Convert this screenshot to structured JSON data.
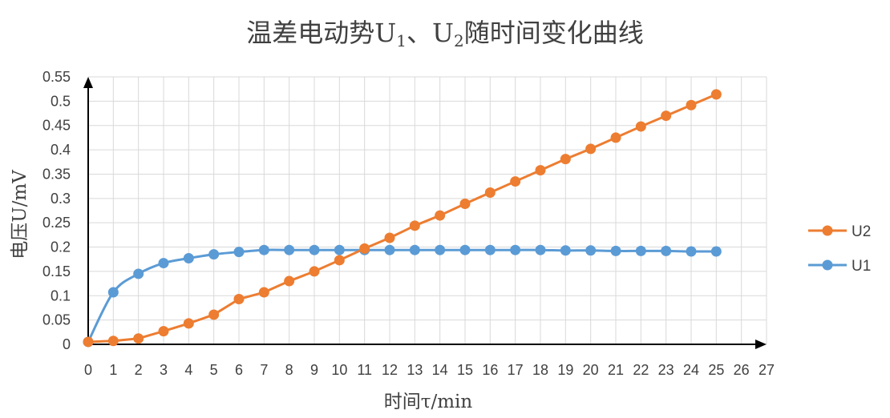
{
  "chart_data": {
    "type": "line",
    "title": {
      "main": "温差电动势U",
      "sub1": "1",
      "mid": "、U",
      "sub2": "2",
      "tail": "随时间变化曲线"
    },
    "xlabel": "时间τ/min",
    "ylabel": "电压U/mV",
    "xlim": [
      0,
      27
    ],
    "ylim": [
      0,
      0.55
    ],
    "x_ticks": [
      0,
      1,
      2,
      3,
      4,
      5,
      6,
      7,
      8,
      9,
      10,
      11,
      12,
      13,
      14,
      15,
      16,
      17,
      18,
      19,
      20,
      21,
      22,
      23,
      24,
      25,
      26,
      27
    ],
    "y_ticks": [
      "0",
      "0.05",
      "0.1",
      "0.15",
      "0.2",
      "0.25",
      "0.3",
      "0.35",
      "0.4",
      "0.45",
      "0.5",
      "0.55"
    ],
    "grid": true,
    "legend_position": "right",
    "x": [
      0,
      1,
      2,
      3,
      4,
      5,
      6,
      7,
      8,
      9,
      10,
      11,
      12,
      13,
      14,
      15,
      16,
      17,
      18,
      19,
      20,
      21,
      22,
      23,
      24,
      25
    ],
    "series": [
      {
        "name": "U2",
        "color": "#ED7D31",
        "smooth": false,
        "values": [
          0.005,
          0.007,
          0.012,
          0.027,
          0.043,
          0.061,
          0.093,
          0.107,
          0.13,
          0.15,
          0.173,
          0.197,
          0.219,
          0.244,
          0.265,
          0.289,
          0.312,
          0.335,
          0.358,
          0.381,
          0.402,
          0.425,
          0.448,
          0.47,
          0.492,
          0.514
        ]
      },
      {
        "name": "U1",
        "color": "#5B9BD5",
        "smooth": true,
        "values": [
          0.005,
          0.107,
          0.145,
          0.167,
          0.177,
          0.185,
          0.19,
          0.194,
          0.194,
          0.194,
          0.194,
          0.194,
          0.194,
          0.194,
          0.194,
          0.194,
          0.194,
          0.194,
          0.194,
          0.193,
          0.193,
          0.192,
          0.192,
          0.192,
          0.191,
          0.191
        ]
      }
    ]
  }
}
